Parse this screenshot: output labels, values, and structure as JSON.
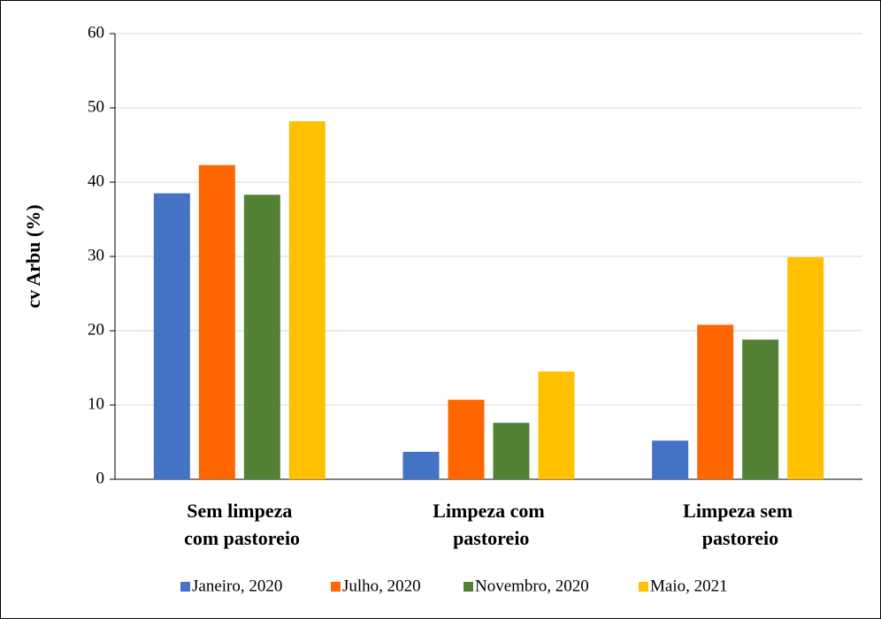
{
  "chart_data": {
    "type": "bar",
    "ylabel": "cv Arbu (%)",
    "categories": [
      "Sem limpeza com pastoreio",
      "Limpeza com pastoreio",
      "Limpeza sem pastoreio"
    ],
    "series": [
      {
        "name": "Janeiro, 2020",
        "color": "#4472c4",
        "values": [
          38.5,
          3.7,
          5.2
        ]
      },
      {
        "name": "Julho, 2020",
        "color": "#ff6600",
        "values": [
          42.3,
          10.7,
          20.8
        ]
      },
      {
        "name": "Novembro, 2020",
        "color": "#548235",
        "values": [
          38.3,
          7.6,
          18.8
        ]
      },
      {
        "name": "Maio, 2021",
        "color": "#ffc000",
        "values": [
          48.2,
          14.5,
          29.9
        ]
      }
    ],
    "ylim": [
      0,
      60
    ],
    "yticks": [
      0,
      10,
      20,
      30,
      40,
      50,
      60
    ],
    "grid": true,
    "legend": "bottom"
  }
}
